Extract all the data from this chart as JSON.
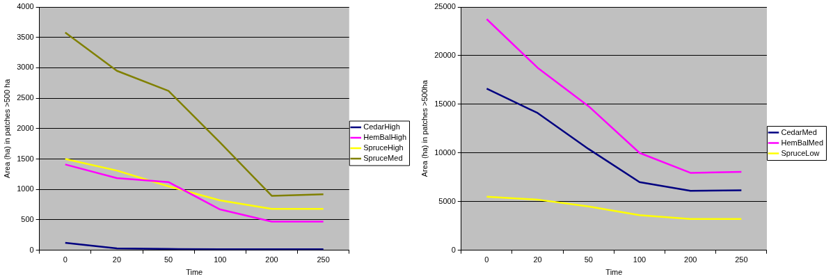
{
  "chart_data": [
    {
      "type": "line",
      "categories": [
        "0",
        "20",
        "50",
        "100",
        "200",
        "250"
      ],
      "xlabel": "Time",
      "ylabel": "Area (ha) in patches >500 ha",
      "ylim": [
        0,
        4000
      ],
      "yticks": [
        0,
        500,
        1000,
        1500,
        2000,
        2500,
        3000,
        3500,
        4000
      ],
      "grid": "y",
      "legend": "right",
      "marker": "none",
      "series": [
        {
          "name": "CedarHigh",
          "color": "#000080",
          "values": [
            120,
            30,
            20,
            15,
            15,
            15
          ]
        },
        {
          "name": "HemBalHigh",
          "color": "#ff00ff",
          "values": [
            1410,
            1185,
            1120,
            670,
            470,
            470
          ]
        },
        {
          "name": "SpruceHigh",
          "color": "#ffff00",
          "values": [
            1500,
            1310,
            1050,
            820,
            680,
            680
          ]
        },
        {
          "name": "SpruceMed",
          "color": "#808000",
          "values": [
            3580,
            2950,
            2620,
            1770,
            895,
            920
          ]
        }
      ]
    },
    {
      "type": "line",
      "categories": [
        "0",
        "20",
        "50",
        "100",
        "200",
        "250"
      ],
      "xlabel": "Time",
      "ylabel": "Area (ha) in patches >500ha",
      "ylim": [
        0,
        25000
      ],
      "yticks": [
        0,
        5000,
        10000,
        15000,
        20000,
        25000
      ],
      "grid": "y",
      "legend": "right",
      "marker": "none",
      "series": [
        {
          "name": "CedarMed",
          "color": "#000080",
          "values": [
            16600,
            14100,
            10400,
            7000,
            6100,
            6150
          ]
        },
        {
          "name": "HemBalMed",
          "color": "#ff00ff",
          "values": [
            23750,
            18750,
            14800,
            10000,
            7950,
            8050
          ]
        },
        {
          "name": "SpruceLow",
          "color": "#ffff00",
          "values": [
            5500,
            5200,
            4500,
            3600,
            3200,
            3200
          ]
        }
      ]
    }
  ]
}
